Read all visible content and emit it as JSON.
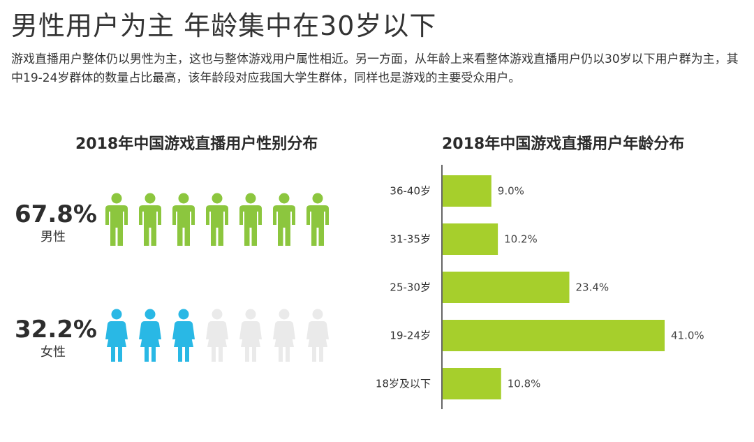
{
  "header": {
    "headline": "男性用户为主 年龄集中在30岁以下",
    "intro": "游戏直播用户整体仍以男性为主，这也与整体游戏用户属性相近。另一方面，从年龄上来看整体游戏直播用户仍以30岁以下用户群为主，其中19-24岁群体的数量占比最高，该年龄段对应我国大学生群体，同样也是游戏的主要受众用户。"
  },
  "colors": {
    "male": "#8cc63e",
    "female": "#29b8e5",
    "inactive": "#eaeaea",
    "bar": "#a6cf2c",
    "axis": "#333333"
  },
  "chart_data": [
    {
      "type": "pictograph",
      "title": "2018年中国游戏直播用户性别分布",
      "series": [
        {
          "label": "男性",
          "value": 67.8,
          "value_text": "67.8%",
          "icons_total": 7,
          "icons_filled": 7,
          "icon": "male-person-icon"
        },
        {
          "label": "女性",
          "value": 32.2,
          "value_text": "32.2%",
          "icons_total": 7,
          "icons_filled": 3,
          "icon": "female-person-icon"
        }
      ]
    },
    {
      "type": "bar",
      "orientation": "horizontal",
      "title": "2018年中国游戏直播用户年龄分布",
      "categories": [
        "36-40岁",
        "31-35岁",
        "25-30岁",
        "19-24岁",
        "18岁及以下"
      ],
      "values": [
        9.0,
        10.2,
        23.4,
        41.0,
        10.8
      ],
      "value_labels": [
        "9.0%",
        "10.2%",
        "23.4%",
        "41.0%",
        "10.8%"
      ],
      "xlim": [
        0,
        41.0
      ],
      "grid": false
    }
  ]
}
